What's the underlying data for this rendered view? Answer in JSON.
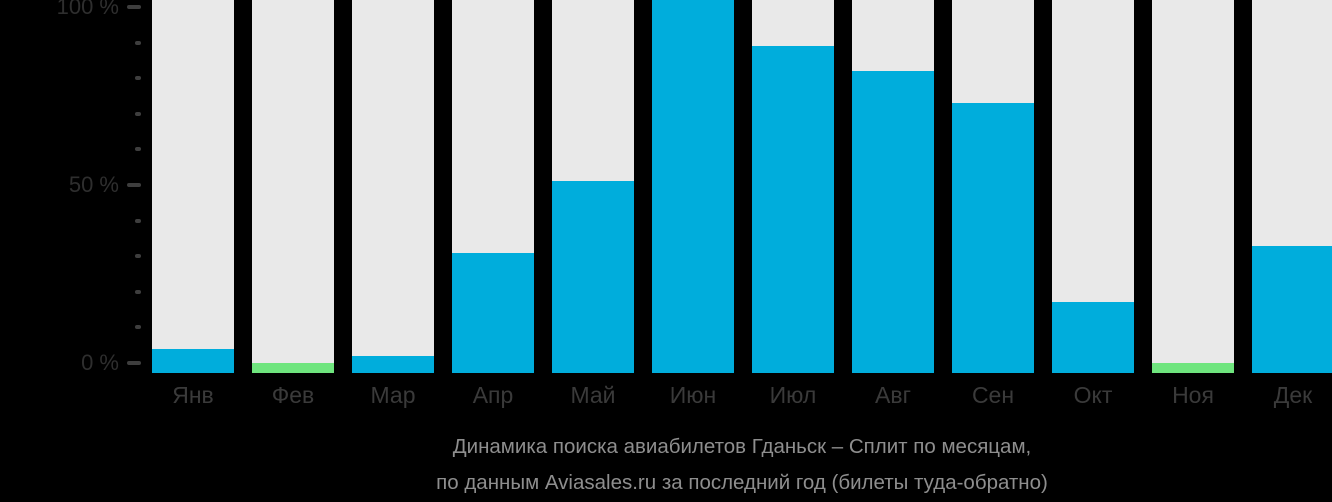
{
  "chart_data": {
    "type": "bar",
    "categories": [
      "Янв",
      "Фев",
      "Мар",
      "Апр",
      "Май",
      "Июн",
      "Июл",
      "Авг",
      "Сен",
      "Окт",
      "Ноя",
      "Дек"
    ],
    "values": [
      4,
      0,
      2,
      31,
      51,
      100,
      89,
      82,
      73,
      17,
      0,
      33
    ],
    "bar_states": [
      "active",
      "empty",
      "active",
      "active",
      "active",
      "active",
      "active",
      "active",
      "active",
      "active",
      "empty",
      "active"
    ],
    "title": "Динамика поиска авиабилетов Гданьск – Сплит по месяцам,",
    "subtitle": "по данным Aviasales.ru за последний год (билеты туда-обратно)",
    "xlabel": "",
    "ylabel": "",
    "ylim": [
      0,
      100
    ],
    "grid": false,
    "legend": false,
    "y_axis": [
      {
        "value": 0,
        "label": "0 %"
      },
      {
        "value": 50,
        "label": "50 %"
      },
      {
        "value": 100,
        "label": "100 %"
      }
    ],
    "minor_tick_step": 10,
    "colors": {
      "bar_active": "#00ADDC",
      "bar_empty": "#6FE57E",
      "bar_track": "#E9E9E9",
      "background": "#000000",
      "axis_text": "#2E2E2E",
      "month_text": "#3A3A3A",
      "tick_mark": "#3E3E3E",
      "caption_text": "#8E8E8E"
    }
  }
}
